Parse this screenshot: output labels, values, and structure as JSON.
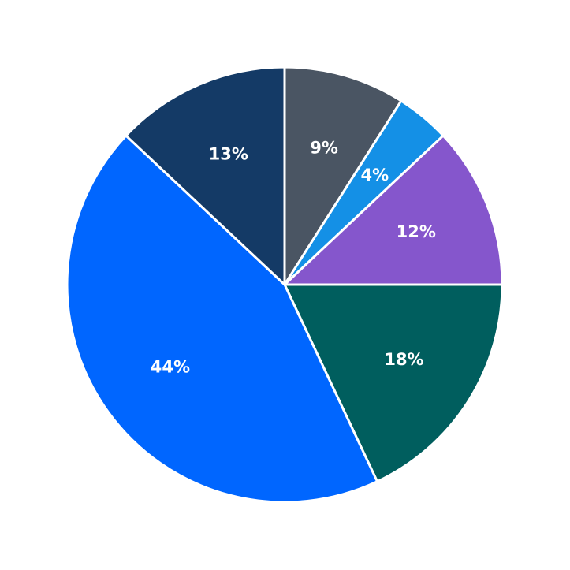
{
  "chart_data": {
    "type": "pie",
    "values": [
      9,
      4,
      12,
      18,
      44,
      13
    ],
    "value_labels": [
      "9%",
      "4%",
      "12%",
      "18%",
      "44%",
      "13%"
    ],
    "colors": [
      "#4a5563",
      "#1490e6",
      "#8556cc",
      "#005e5e",
      "#0066ff",
      "#143a66"
    ]
  }
}
